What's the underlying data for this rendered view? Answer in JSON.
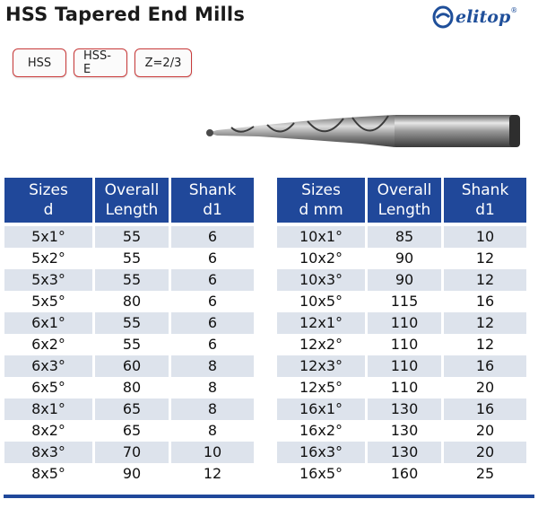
{
  "title": "HSS Tapered End Mills",
  "logo": {
    "text": "elitop",
    "reg": "®",
    "icon": "elitop-swirl-logo",
    "color": "#1f4f9a"
  },
  "badges": [
    "HSS",
    "HSS-E",
    "Z=2/3"
  ],
  "header_color": "#20489a",
  "row_shade_color": "#dde3ec",
  "left_table": {
    "headers": [
      {
        "line1": "Sizes",
        "line2": "d"
      },
      {
        "line1": "Overall",
        "line2": "Length"
      },
      {
        "line1": "Shank",
        "line2": "d1"
      }
    ],
    "rows": [
      [
        "5x1°",
        "55",
        "6"
      ],
      [
        "5x2°",
        "55",
        "6"
      ],
      [
        "5x3°",
        "55",
        "6"
      ],
      [
        "5x5°",
        "80",
        "6"
      ],
      [
        "6x1°",
        "55",
        "6"
      ],
      [
        "6x2°",
        "55",
        "6"
      ],
      [
        "6x3°",
        "60",
        "8"
      ],
      [
        "6x5°",
        "80",
        "8"
      ],
      [
        "8x1°",
        "65",
        "8"
      ],
      [
        "8x2°",
        "65",
        "8"
      ],
      [
        "8x3°",
        "70",
        "10"
      ],
      [
        "8x5°",
        "90",
        "12"
      ]
    ]
  },
  "right_table": {
    "headers": [
      {
        "line1": "Sizes",
        "line2": "d mm"
      },
      {
        "line1": "Overall",
        "line2": "Length"
      },
      {
        "line1": "Shank",
        "line2": "d1"
      }
    ],
    "rows": [
      [
        "10x1°",
        "85",
        "10"
      ],
      [
        "10x2°",
        "90",
        "12"
      ],
      [
        "10x3°",
        "90",
        "12"
      ],
      [
        "10x5°",
        "115",
        "16"
      ],
      [
        "12x1°",
        "110",
        "12"
      ],
      [
        "12x2°",
        "110",
        "12"
      ],
      [
        "12x3°",
        "110",
        "16"
      ],
      [
        "12x5°",
        "110",
        "20"
      ],
      [
        "16x1°",
        "130",
        "16"
      ],
      [
        "16x2°",
        "130",
        "20"
      ],
      [
        "16x3°",
        "130",
        "20"
      ],
      [
        "16x5°",
        "160",
        "25"
      ]
    ]
  }
}
